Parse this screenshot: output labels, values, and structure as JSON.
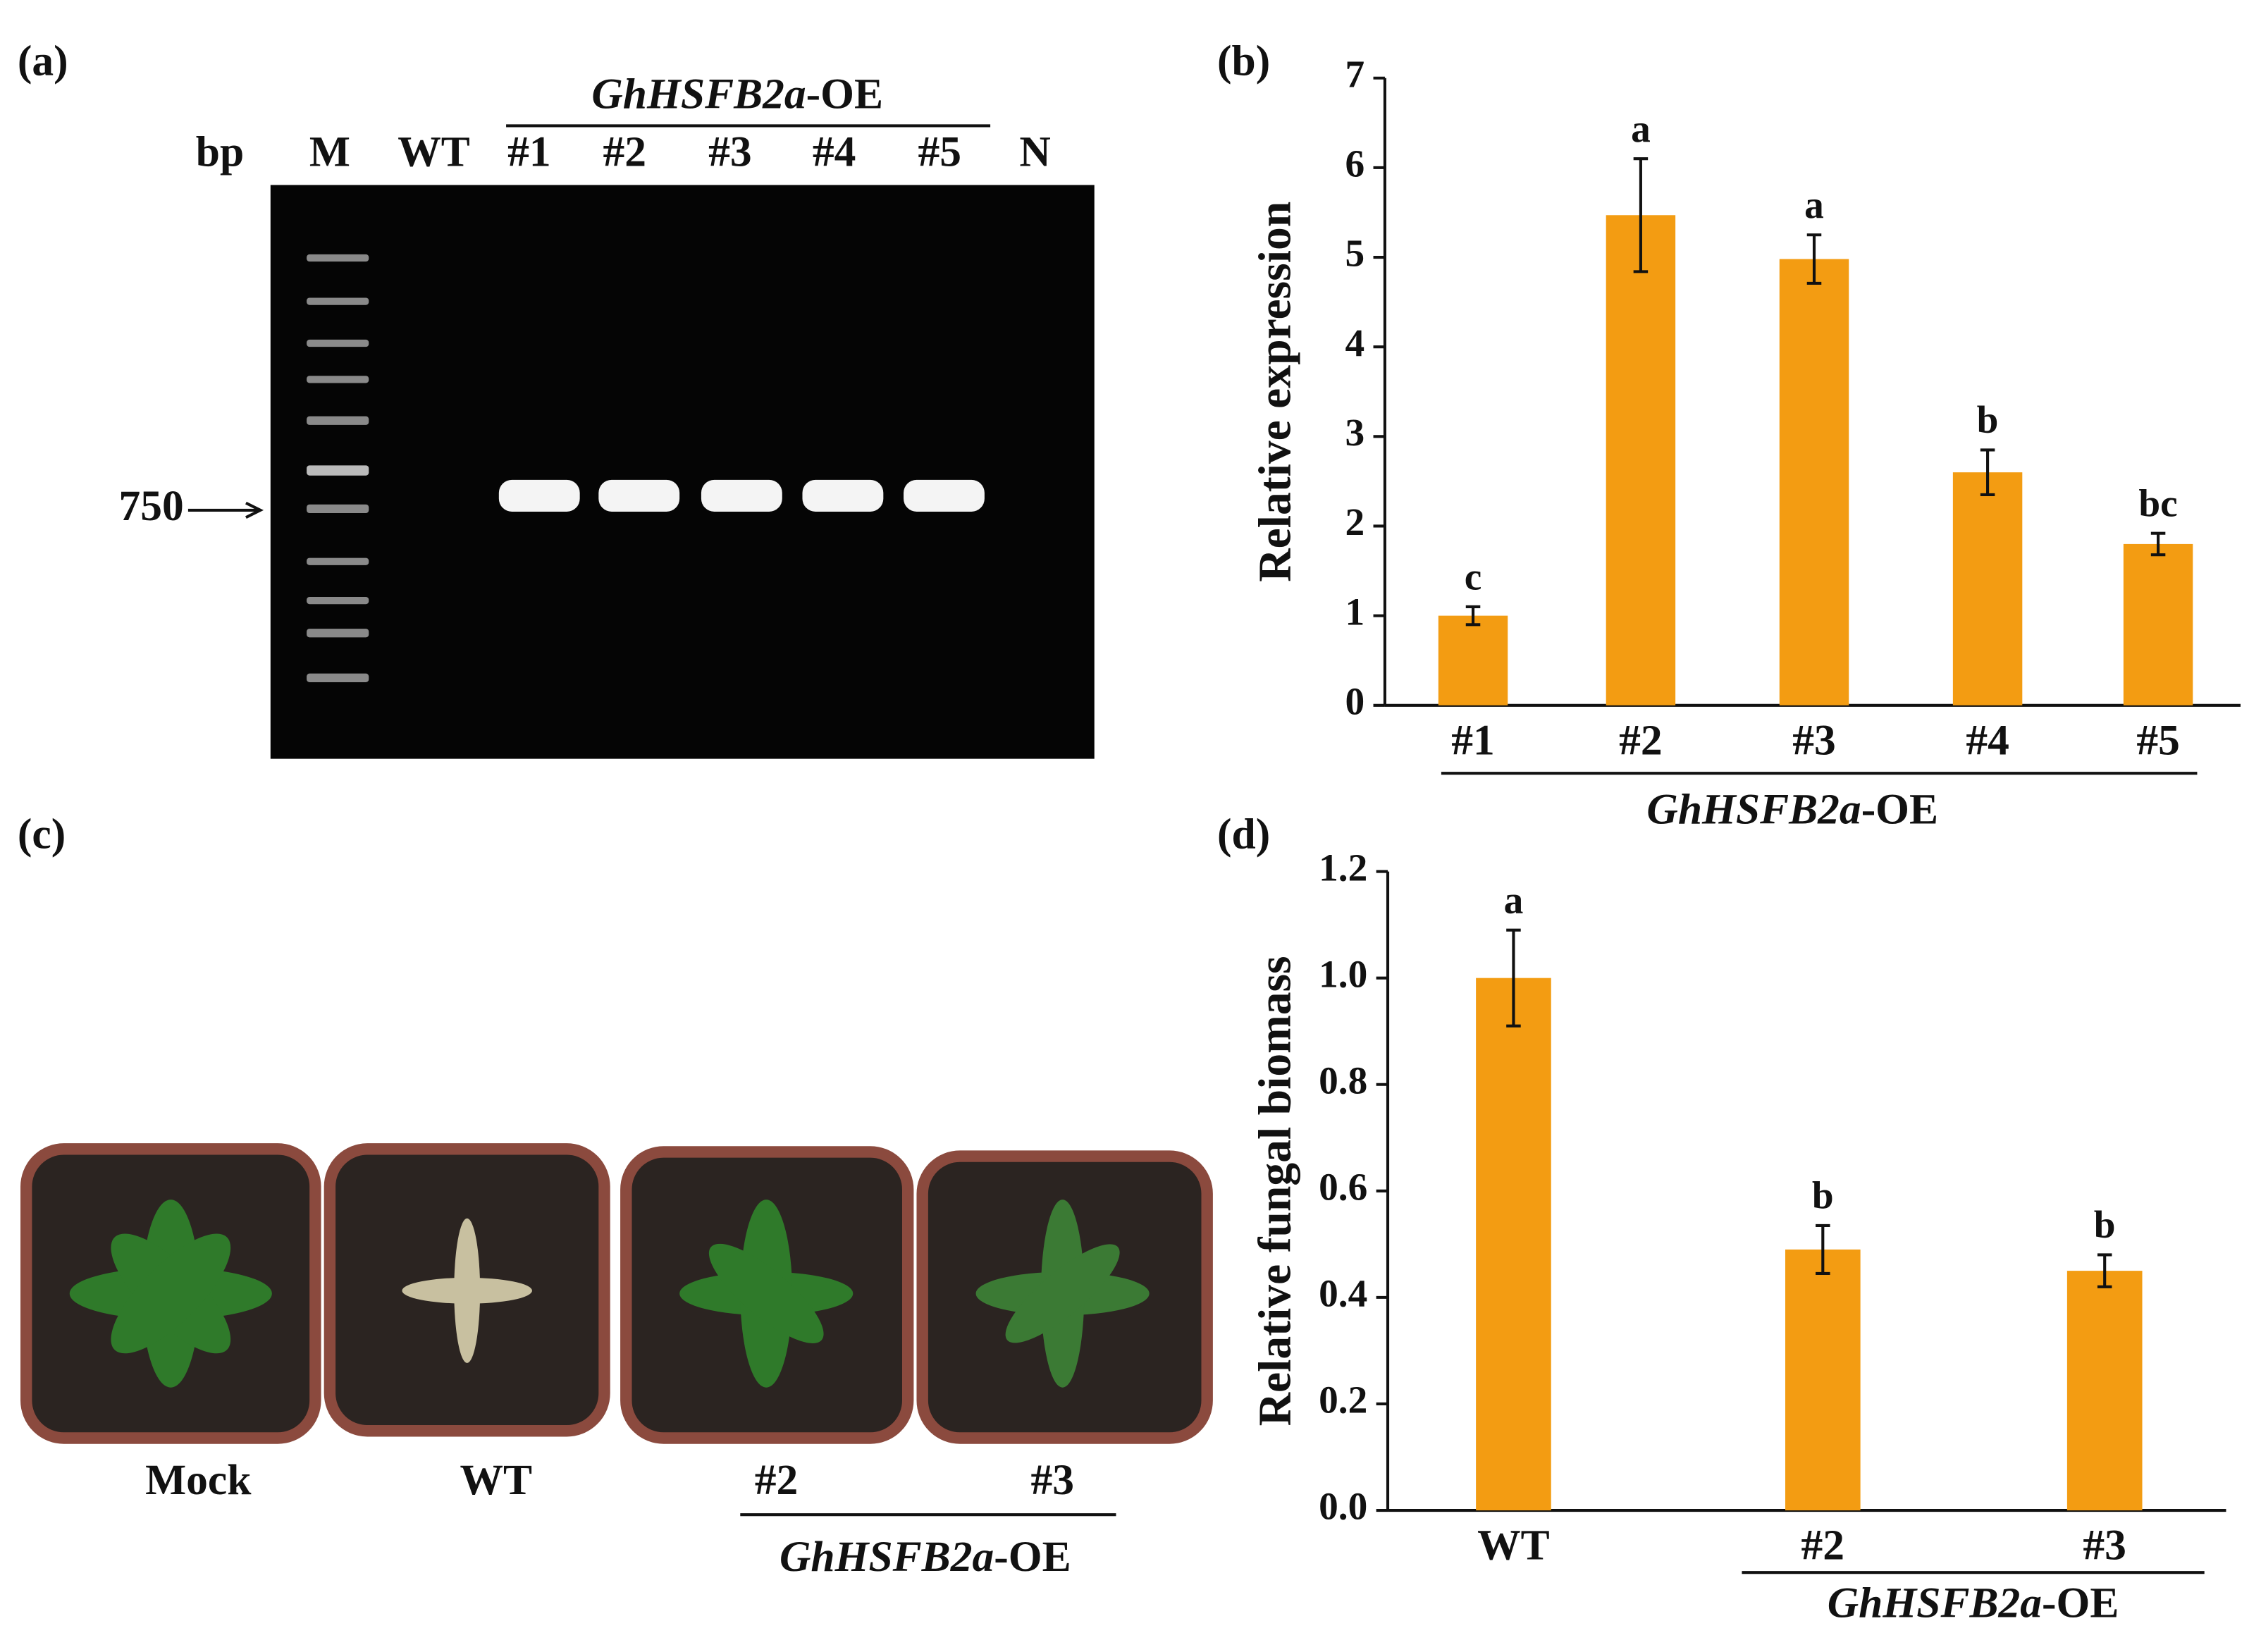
{
  "panel_labels": [
    "(a)",
    "(b)",
    "(c)",
    "(d)"
  ],
  "gel": {
    "unit": "bp",
    "lanes": [
      "M",
      "WT",
      "#1",
      "#2",
      "#3",
      "#4",
      "#5",
      "N"
    ],
    "group_label": {
      "gene": "GhHSFB2a",
      "suffix": "-OE"
    },
    "marker": 750
  },
  "photo": {
    "labels": [
      "Mock",
      "WT",
      "#2",
      "#3"
    ],
    "group_label": {
      "gene": "GhHSFB2a",
      "suffix": "-OE"
    }
  },
  "chart_data": [
    {
      "type": "bar",
      "y_label": "Relative expression",
      "categories": [
        "#1",
        "#2",
        "#3",
        "#4",
        "#5"
      ],
      "values": [
        1.0,
        5.47,
        4.98,
        2.6,
        1.8
      ],
      "errors": [
        0.1,
        0.63,
        0.27,
        0.25,
        0.12
      ],
      "annotations": [
        "c",
        "a",
        "a",
        "b",
        "bc"
      ],
      "group_label": {
        "gene": "GhHSFB2a",
        "suffix": "-OE"
      },
      "color": "#f39c12",
      "ylim": [
        0,
        7
      ],
      "yticks": [
        0,
        1,
        2,
        3,
        4,
        5,
        6,
        7
      ]
    },
    {
      "type": "bar",
      "y_label": "Relative fungal biomass",
      "categories": [
        "WT",
        "#2",
        "#3"
      ],
      "values": [
        1.0,
        0.49,
        0.45
      ],
      "errors": [
        0.09,
        0.045,
        0.03
      ],
      "annotations": [
        "a",
        "b",
        "b"
      ],
      "group_label": {
        "gene": "GhHSFB2a",
        "suffix": "-OE"
      },
      "color": "#f39c12",
      "ylim": [
        0,
        1.2
      ],
      "yticks": [
        {
          "value": 0,
          "label": "0.0"
        },
        0.2,
        0.4,
        0.6,
        0.8,
        {
          "value": 1,
          "label": "1.0"
        },
        1.2
      ]
    }
  ]
}
